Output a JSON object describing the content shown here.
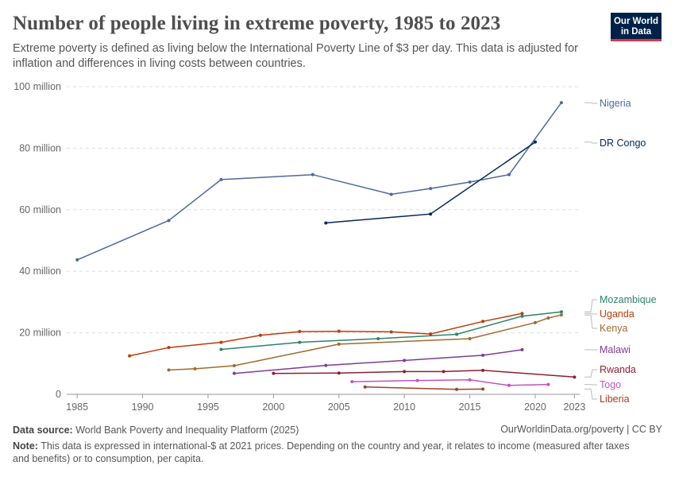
{
  "header": {
    "title": "Number of people living in extreme poverty, 1985 to 2023",
    "subtitle": "Extreme poverty is defined as living below the International Poverty Line of $3 per day. This data is adjusted for inflation and differences in living costs between countries.",
    "logo_line1": "Our World",
    "logo_line2": "in Data"
  },
  "footer": {
    "source_label": "Data source:",
    "source_text": "World Bank Poverty and Inequality Platform (2025)",
    "credit": "OurWorldinData.org/poverty | CC BY",
    "note_label": "Note:",
    "note_text": "This data is expressed in international-$ at 2021 prices. Depending on the country and year, it relates to income (measured after taxes and benefits) or to consumption, per capita."
  },
  "chart_data": {
    "type": "line",
    "title": "Number of people living in extreme poverty, 1985 to 2023",
    "xlim": [
      1984.2,
      2023.4
    ],
    "ylim": [
      0,
      100000000
    ],
    "x_ticks": [
      1985,
      1990,
      1995,
      2000,
      2005,
      2010,
      2015,
      2020,
      2023
    ],
    "y_ticks": [
      {
        "value": 0,
        "label": "0"
      },
      {
        "value": 20000000,
        "label": "20 million"
      },
      {
        "value": 40000000,
        "label": "40 million"
      },
      {
        "value": 60000000,
        "label": "60 million"
      },
      {
        "value": 80000000,
        "label": "80 million"
      },
      {
        "value": 100000000,
        "label": "100 million"
      }
    ],
    "grid": true,
    "legend": "right",
    "series": [
      {
        "name": "Nigeria",
        "color": "#4c6a9c",
        "points": [
          [
            1985,
            43700000
          ],
          [
            1992,
            56500000
          ],
          [
            1996,
            69800000
          ],
          [
            2003,
            71400000
          ],
          [
            2009,
            65000000
          ],
          [
            2012,
            66900000
          ],
          [
            2015,
            69000000
          ],
          [
            2018,
            71400000
          ],
          [
            2022,
            94800000
          ]
        ]
      },
      {
        "name": "DR Congo",
        "color": "#00295b",
        "points": [
          [
            2004,
            55700000
          ],
          [
            2012,
            58600000
          ],
          [
            2020,
            82000000
          ]
        ]
      },
      {
        "name": "Mozambique",
        "color": "#2c8465",
        "points": [
          [
            1996,
            14600000
          ],
          [
            2002,
            16900000
          ],
          [
            2008,
            18100000
          ],
          [
            2014,
            19500000
          ],
          [
            2019,
            25400000
          ],
          [
            2022,
            26800000
          ]
        ]
      },
      {
        "name": "Uganda",
        "color": "#be3b0a",
        "points": [
          [
            1989,
            12500000
          ],
          [
            1992,
            15200000
          ],
          [
            1996,
            16900000
          ],
          [
            1999,
            19200000
          ],
          [
            2002,
            20400000
          ],
          [
            2005,
            20500000
          ],
          [
            2009,
            20300000
          ],
          [
            2012,
            19600000
          ],
          [
            2016,
            23700000
          ],
          [
            2019,
            26300000
          ]
        ]
      },
      {
        "name": "Kenya",
        "color": "#a2692c",
        "points": [
          [
            1992,
            7900000
          ],
          [
            1994,
            8300000
          ],
          [
            1997,
            9300000
          ],
          [
            2005,
            16300000
          ],
          [
            2015,
            18100000
          ],
          [
            2020,
            23300000
          ],
          [
            2021,
            24800000
          ],
          [
            2022,
            25800000
          ]
        ]
      },
      {
        "name": "Malawi",
        "color": "#7e3b96",
        "points": [
          [
            1997,
            6800000
          ],
          [
            2004,
            9400000
          ],
          [
            2010,
            11000000
          ],
          [
            2016,
            12700000
          ],
          [
            2019,
            14500000
          ]
        ]
      },
      {
        "name": "Rwanda",
        "color": "#8c2031",
        "points": [
          [
            2000,
            6800000
          ],
          [
            2005,
            6900000
          ],
          [
            2010,
            7400000
          ],
          [
            2013,
            7400000
          ],
          [
            2016,
            7800000
          ],
          [
            2023,
            5600000
          ]
        ]
      },
      {
        "name": "Togo",
        "color": "#bf55bd",
        "points": [
          [
            2006,
            4100000
          ],
          [
            2011,
            4500000
          ],
          [
            2015,
            4700000
          ],
          [
            2018,
            2900000
          ],
          [
            2021,
            3200000
          ]
        ]
      },
      {
        "name": "Liberia",
        "color": "#a33f22",
        "points": [
          [
            2007,
            2400000
          ],
          [
            2014,
            1600000
          ],
          [
            2016,
            1700000
          ]
        ]
      }
    ],
    "label_placement": [
      {
        "name": "Nigeria",
        "ly": 130
      },
      {
        "name": "DR Congo",
        "ly": 180
      },
      {
        "name": "Mozambique",
        "ly": 377
      },
      {
        "name": "Uganda",
        "ly": 395
      },
      {
        "name": "Kenya",
        "ly": 413
      },
      {
        "name": "Malawi",
        "ly": 440
      },
      {
        "name": "Rwanda",
        "ly": 465
      },
      {
        "name": "Togo",
        "ly": 484
      },
      {
        "name": "Liberia",
        "ly": 502
      }
    ]
  }
}
